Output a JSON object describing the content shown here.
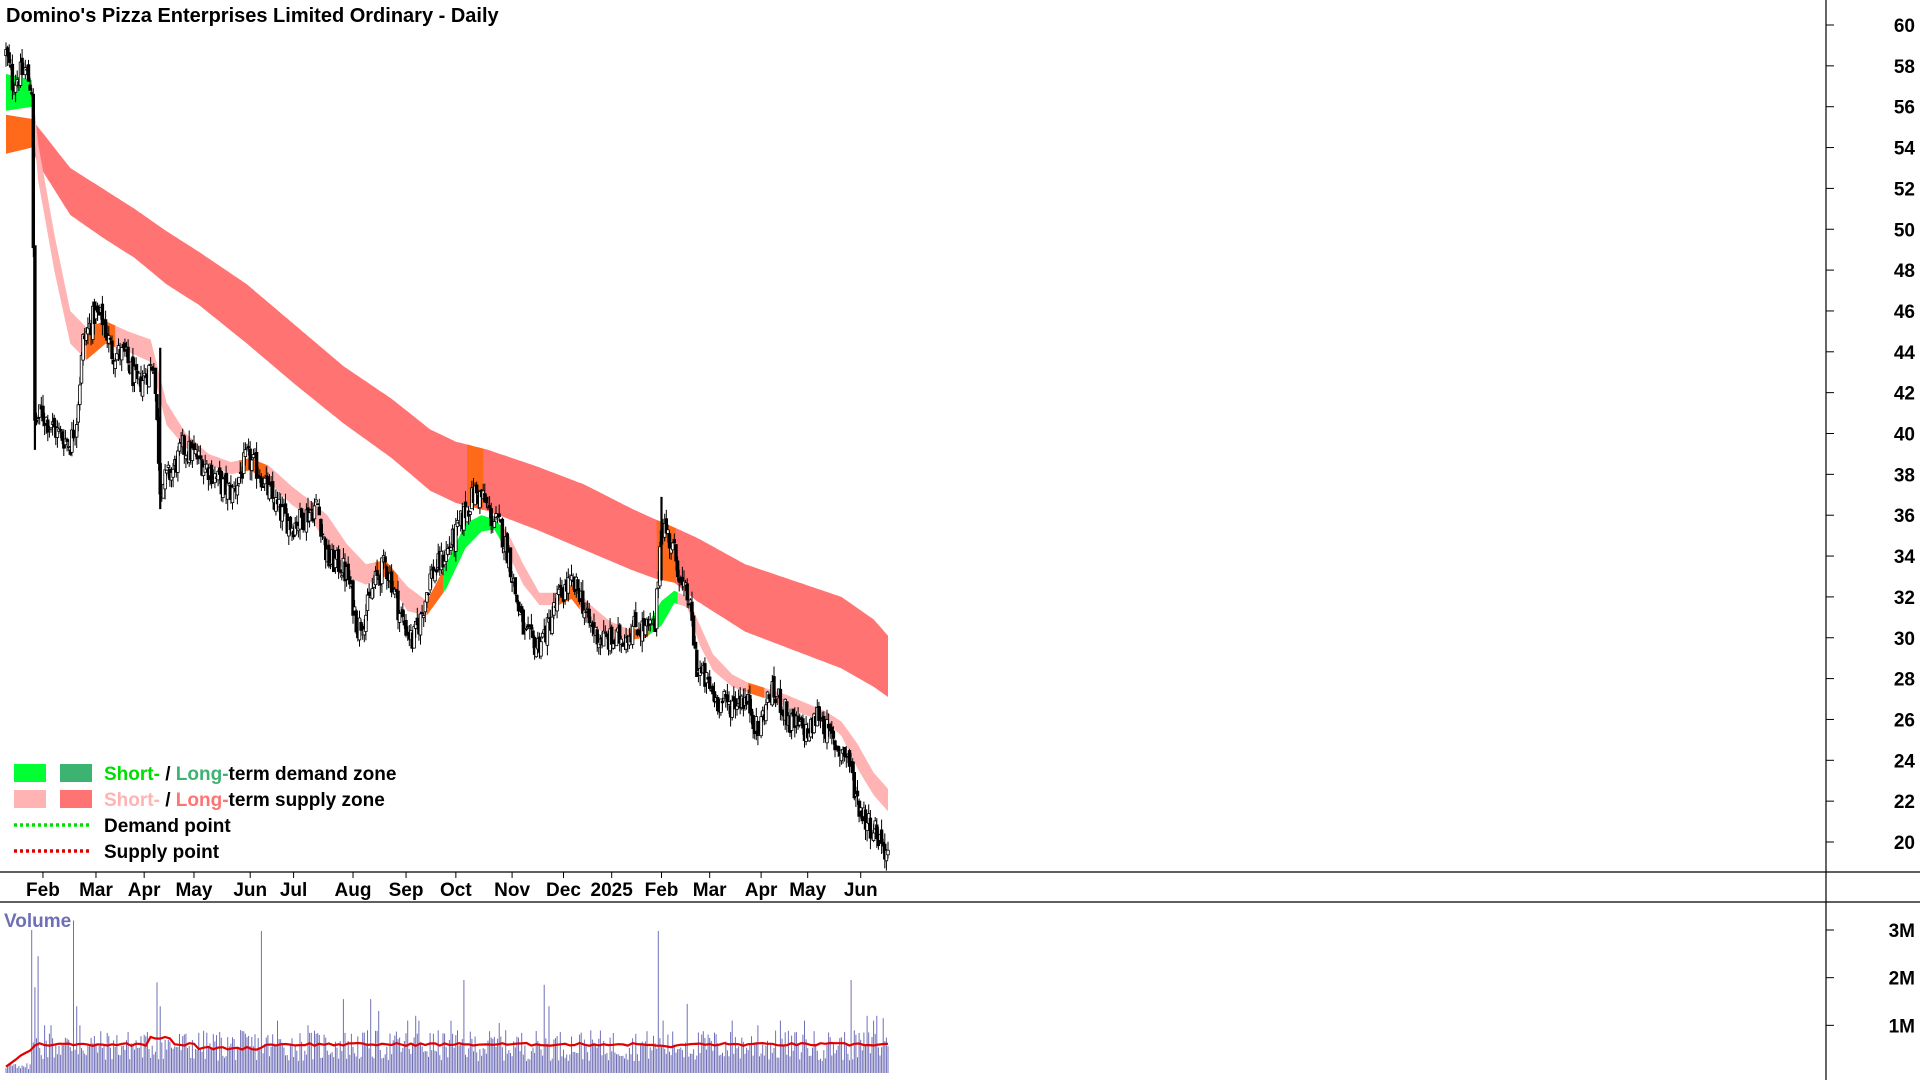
{
  "title": "Domino's Pizza Enterprises Limited Ordinary - Daily",
  "colors": {
    "short_demand": "#00ff33",
    "long_demand": "#3cb371",
    "short_supply": "#ffb3b3",
    "long_supply": "#ff7373",
    "crossover": "#ff6a1a",
    "demand_point": "#00dd00",
    "supply_point": "#dd0000",
    "volume_bar": "#6f6fb8",
    "volume_ma": "#e00000",
    "volume_title": "#6f6fb8"
  },
  "legend": [
    {
      "prefix": "Short-",
      "sep": " / ",
      "long": "Long-",
      "suffix": "term demand zone",
      "prefix_color": "#00dd00",
      "long_color": "#3cb371",
      "swatch_short": "#00ff33",
      "swatch_long": "#3cb371",
      "kind": "zone"
    },
    {
      "prefix": "Short-",
      "sep": " / ",
      "long": "Long-",
      "suffix": "term supply zone",
      "prefix_color": "#ffb3b3",
      "long_color": "#ff7373",
      "swatch_short": "#ffb3b3",
      "swatch_long": "#ff7373",
      "kind": "zone"
    },
    {
      "label": "Demand point",
      "color": "#00dd00",
      "kind": "point"
    },
    {
      "label": "Supply point",
      "color": "#dd0000",
      "kind": "point"
    }
  ],
  "chart_data": [
    {
      "type": "candlestick",
      "title": "Domino's Pizza Enterprises Limited Ordinary - Daily",
      "ylim": [
        18,
        61
      ],
      "y_ticks": [
        20,
        22,
        24,
        26,
        28,
        30,
        32,
        34,
        36,
        38,
        40,
        42,
        44,
        46,
        48,
        50,
        52,
        54,
        56,
        58,
        60
      ],
      "x_tick_labels": [
        "Feb",
        "Mar",
        "Apr",
        "May",
        "Jun",
        "Jul",
        "Aug",
        "Sep",
        "Oct",
        "Nov",
        "Dec",
        "2025",
        "Feb",
        "Mar",
        "Apr",
        "May",
        "Jun"
      ],
      "x_tick_index": [
        23,
        56,
        86,
        117,
        152,
        179,
        216,
        249,
        280,
        315,
        347,
        377,
        408,
        438,
        470,
        499,
        532
      ],
      "n_bars": 553,
      "grid": false,
      "legend_position": "bottom-left",
      "close_keypoints": [
        [
          0,
          58.6
        ],
        [
          4,
          57.2
        ],
        [
          12,
          57.8
        ],
        [
          16,
          56.9
        ],
        [
          18,
          40.5
        ],
        [
          22,
          41.0
        ],
        [
          30,
          40.2
        ],
        [
          40,
          39.5
        ],
        [
          44,
          40.8
        ],
        [
          48,
          44.5
        ],
        [
          55,
          45.8
        ],
        [
          60,
          45.6
        ],
        [
          66,
          44.0
        ],
        [
          74,
          43.8
        ],
        [
          82,
          42.3
        ],
        [
          92,
          43.5
        ],
        [
          96,
          37.4
        ],
        [
          104,
          38.2
        ],
        [
          110,
          39.3
        ],
        [
          118,
          38.9
        ],
        [
          126,
          38.3
        ],
        [
          135,
          37.4
        ],
        [
          141,
          37.1
        ],
        [
          150,
          38.8
        ],
        [
          158,
          38.1
        ],
        [
          163,
          37.2
        ],
        [
          170,
          36.2
        ],
        [
          178,
          35.5
        ],
        [
          185,
          35.9
        ],
        [
          194,
          36.5
        ],
        [
          200,
          33.8
        ],
        [
          208,
          33.6
        ],
        [
          213,
          32.9
        ],
        [
          219,
          30.5
        ],
        [
          224,
          31.2
        ],
        [
          229,
          32.6
        ],
        [
          236,
          33.6
        ],
        [
          240,
          32.8
        ],
        [
          245,
          31.2
        ],
        [
          253,
          29.8
        ],
        [
          258,
          30.9
        ],
        [
          264,
          33.0
        ],
        [
          270,
          33.6
        ],
        [
          275,
          34.3
        ],
        [
          280,
          35.0
        ],
        [
          286,
          36.2
        ],
        [
          292,
          37.1
        ],
        [
          297,
          36.8
        ],
        [
          302,
          35.9
        ],
        [
          308,
          35.3
        ],
        [
          313,
          34.0
        ],
        [
          318,
          31.8
        ],
        [
          323,
          30.1
        ],
        [
          330,
          29.6
        ],
        [
          337,
          30.4
        ],
        [
          343,
          31.8
        ],
        [
          350,
          32.6
        ],
        [
          357,
          32.3
        ],
        [
          362,
          30.8
        ],
        [
          369,
          30.0
        ],
        [
          378,
          29.8
        ],
        [
          385,
          30.1
        ],
        [
          392,
          30.6
        ],
        [
          398,
          30.4
        ],
        [
          404,
          30.5
        ],
        [
          408,
          35.8
        ],
        [
          414,
          34.6
        ],
        [
          418,
          33.6
        ],
        [
          421,
          32.3
        ],
        [
          425,
          31.9
        ],
        [
          430,
          28.6
        ],
        [
          436,
          27.8
        ],
        [
          442,
          27.0
        ],
        [
          450,
          26.7
        ],
        [
          458,
          27.1
        ],
        [
          464,
          26.5
        ],
        [
          468,
          25.2
        ],
        [
          472,
          26.5
        ],
        [
          476,
          27.3
        ],
        [
          482,
          26.9
        ],
        [
          488,
          25.8
        ],
        [
          494,
          25.6
        ],
        [
          500,
          25.3
        ],
        [
          506,
          26.4
        ],
        [
          512,
          25.2
        ],
        [
          518,
          24.6
        ],
        [
          524,
          24.2
        ],
        [
          530,
          22.0
        ],
        [
          536,
          21.0
        ],
        [
          542,
          20.5
        ],
        [
          546,
          19.8
        ],
        [
          549,
          19.4
        ]
      ],
      "short_band_keypoints": [
        [
          0,
          55.8,
          57.6
        ],
        [
          16,
          56.0,
          57.3
        ],
        [
          20,
          52.4,
          54.2
        ],
        [
          30,
          48.0,
          49.8
        ],
        [
          40,
          44.4,
          46.0
        ],
        [
          50,
          43.6,
          45.2
        ],
        [
          62,
          44.4,
          45.5
        ],
        [
          76,
          44.0,
          45.0
        ],
        [
          90,
          43.5,
          44.6
        ],
        [
          100,
          40.4,
          41.5
        ],
        [
          112,
          39.3,
          40.0
        ],
        [
          126,
          38.5,
          39.0
        ],
        [
          140,
          38.0,
          38.6
        ],
        [
          152,
          38.2,
          38.8
        ],
        [
          164,
          37.6,
          38.4
        ],
        [
          178,
          36.5,
          37.4
        ],
        [
          188,
          36.0,
          36.8
        ],
        [
          200,
          34.6,
          36.0
        ],
        [
          212,
          33.0,
          34.6
        ],
        [
          224,
          32.6,
          33.6
        ],
        [
          236,
          33.0,
          33.8
        ],
        [
          250,
          31.3,
          32.5
        ],
        [
          262,
          31.1,
          31.8
        ],
        [
          274,
          32.4,
          33.6
        ],
        [
          286,
          34.4,
          35.6
        ],
        [
          296,
          35.2,
          36.0
        ],
        [
          304,
          35.3,
          35.8
        ],
        [
          312,
          34.2,
          35.2
        ],
        [
          322,
          32.6,
          33.6
        ],
        [
          332,
          31.6,
          32.2
        ],
        [
          344,
          31.6,
          32.2
        ],
        [
          352,
          31.9,
          32.6
        ],
        [
          364,
          30.7,
          31.6
        ],
        [
          376,
          30.0,
          30.8
        ],
        [
          388,
          29.9,
          30.4
        ],
        [
          398,
          30.0,
          30.5
        ],
        [
          408,
          30.6,
          31.8
        ],
        [
          416,
          31.7,
          32.3
        ],
        [
          424,
          31.5,
          32.0
        ],
        [
          432,
          29.6,
          30.6
        ],
        [
          440,
          28.4,
          29.2
        ],
        [
          452,
          27.6,
          28.2
        ],
        [
          462,
          27.3,
          27.8
        ],
        [
          474,
          27.0,
          27.5
        ],
        [
          486,
          26.6,
          27.2
        ],
        [
          498,
          26.2,
          26.8
        ],
        [
          510,
          25.9,
          26.4
        ],
        [
          520,
          25.2,
          25.9
        ],
        [
          530,
          23.6,
          24.8
        ],
        [
          540,
          22.3,
          23.4
        ],
        [
          549,
          21.5,
          22.6
        ]
      ],
      "long_band_keypoints": [
        [
          0,
          53.7,
          55.6
        ],
        [
          16,
          54.0,
          55.4
        ],
        [
          20,
          53.2,
          55.0
        ],
        [
          40,
          50.7,
          53.0
        ],
        [
          60,
          49.6,
          52.0
        ],
        [
          80,
          48.6,
          51.0
        ],
        [
          100,
          47.3,
          49.9
        ],
        [
          120,
          46.3,
          48.9
        ],
        [
          150,
          44.4,
          47.3
        ],
        [
          180,
          42.4,
          45.3
        ],
        [
          210,
          40.5,
          43.3
        ],
        [
          240,
          38.8,
          41.7
        ],
        [
          264,
          37.2,
          40.2
        ],
        [
          280,
          36.6,
          39.6
        ],
        [
          300,
          36.2,
          39.2
        ],
        [
          330,
          35.3,
          38.4
        ],
        [
          360,
          34.3,
          37.5
        ],
        [
          390,
          33.3,
          36.3
        ],
        [
          404,
          32.9,
          35.8
        ],
        [
          416,
          32.7,
          35.4
        ],
        [
          430,
          31.8,
          34.9
        ],
        [
          460,
          30.3,
          33.6
        ],
        [
          490,
          29.4,
          32.8
        ],
        [
          520,
          28.5,
          32.0
        ],
        [
          540,
          27.6,
          30.9
        ],
        [
          549,
          27.1,
          30.1
        ]
      ],
      "zone_segments": [
        {
          "from": 0,
          "to": 16,
          "zone": "short_demand"
        },
        {
          "from": 0,
          "to": 16,
          "zone": "crossover_long"
        },
        {
          "from": 50,
          "to": 68,
          "zone": "crossover_short"
        },
        {
          "from": 145,
          "to": 163,
          "zone": "crossover_short"
        },
        {
          "from": 230,
          "to": 244,
          "zone": "crossover_short"
        },
        {
          "from": 262,
          "to": 272,
          "zone": "crossover_short"
        },
        {
          "from": 272,
          "to": 310,
          "zone": "short_demand"
        },
        {
          "from": 287,
          "to": 297,
          "zone": "crossover_long"
        },
        {
          "from": 342,
          "to": 357,
          "zone": "crossover_short"
        },
        {
          "from": 388,
          "to": 400,
          "zone": "crossover_short"
        },
        {
          "from": 400,
          "to": 418,
          "zone": "short_demand"
        },
        {
          "from": 405,
          "to": 417,
          "zone": "crossover_long"
        },
        {
          "from": 462,
          "to": 472,
          "zone": "crossover_short"
        }
      ]
    },
    {
      "type": "bar",
      "title": "Volume",
      "ylim": [
        0,
        3300000
      ],
      "y_ticks": [
        1000000,
        2000000,
        3000000
      ],
      "y_tick_labels": [
        "1M",
        "2M",
        "3M"
      ],
      "volume_ma_value": 600000,
      "volume_spikes": [
        [
          4,
          150000
        ],
        [
          10,
          160000
        ],
        [
          16,
          3000000
        ],
        [
          18,
          1800000
        ],
        [
          20,
          2450000
        ],
        [
          24,
          1000000
        ],
        [
          28,
          1000000
        ],
        [
          42,
          3200000
        ],
        [
          44,
          1400000
        ],
        [
          46,
          1000000
        ],
        [
          94,
          1900000
        ],
        [
          96,
          1400000
        ],
        [
          159,
          2980000
        ],
        [
          169,
          1100000
        ],
        [
          188,
          1000000
        ],
        [
          210,
          1550000
        ],
        [
          227,
          1550000
        ],
        [
          232,
          1300000
        ],
        [
          250,
          1100000
        ],
        [
          255,
          1200000
        ],
        [
          257,
          1100000
        ],
        [
          277,
          1100000
        ],
        [
          285,
          1950000
        ],
        [
          307,
          1050000
        ],
        [
          335,
          1850000
        ],
        [
          338,
          1400000
        ],
        [
          406,
          2980000
        ],
        [
          409,
          1100000
        ],
        [
          424,
          1450000
        ],
        [
          452,
          1100000
        ],
        [
          468,
          1000000
        ],
        [
          482,
          1100000
        ],
        [
          497,
          1100000
        ],
        [
          526,
          1950000
        ],
        [
          536,
          1200000
        ],
        [
          540,
          1100000
        ],
        [
          542,
          1200000
        ],
        [
          546,
          1150000
        ]
      ]
    }
  ]
}
